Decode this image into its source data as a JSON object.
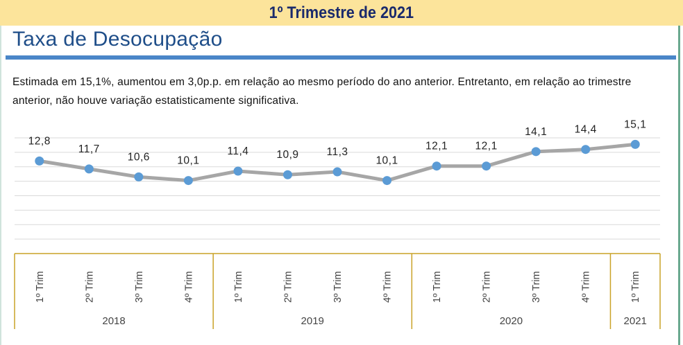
{
  "banner": {
    "title": "1º Trimestre de 2021"
  },
  "heading": "Taxa de Desocupação",
  "description": "Estimada em 15,1%, aumentou em 3,0p.p. em relação ao mesmo período do ano anterior. Entretanto, em relação ao trimestre anterior, não houve variação estatisticamente significativa.",
  "colors": {
    "banner_bg": "#fce49b",
    "title": "#1f4e89",
    "rule": "#4a86c8",
    "line": "#a6a6a6",
    "marker": "#5b9bd5",
    "axis_box": "#c9a227"
  },
  "chart_data": {
    "type": "line",
    "title": "",
    "xlabel": "",
    "ylabel": "",
    "ylim": [
      0,
      16
    ],
    "grid": true,
    "categories": [
      "1º Trim",
      "2º Trim",
      "3º Trim",
      "4º Trim",
      "1º Trim",
      "2º Trim",
      "3º Trim",
      "4º Trim",
      "1º Trim",
      "2º Trim",
      "3º Trim",
      "4º Trim",
      "1º Trim"
    ],
    "groups": [
      {
        "label": "2018",
        "count": 4
      },
      {
        "label": "2019",
        "count": 4
      },
      {
        "label": "2020",
        "count": 4
      },
      {
        "label": "2021",
        "count": 1
      }
    ],
    "series": [
      {
        "name": "Taxa de Desocupação",
        "values": [
          12.8,
          11.7,
          10.6,
          10.1,
          11.4,
          10.9,
          11.3,
          10.1,
          12.1,
          12.1,
          14.1,
          14.4,
          15.1
        ]
      }
    ],
    "data_labels": [
      "12,8",
      "11,7",
      "10,6",
      "10,1",
      "11,4",
      "10,9",
      "11,3",
      "10,1",
      "12,1",
      "12,1",
      "14,1",
      "14,4",
      "15,1"
    ]
  }
}
